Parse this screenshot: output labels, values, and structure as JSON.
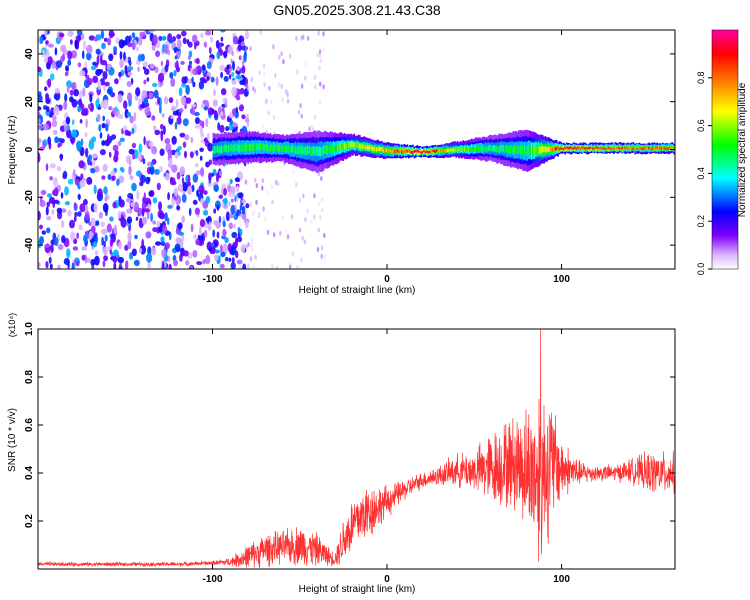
{
  "chart_data": [
    {
      "type": "heatmap",
      "title": "GN05.2025.308.21.43.C38",
      "xlabel": "Height of straight line (km)",
      "ylabel": "Frequency (Hz)",
      "xlim": [
        -200,
        165
      ],
      "ylim": [
        -50,
        50
      ],
      "xticks": [
        -100,
        0,
        100
      ],
      "yticks": [
        -40,
        -20,
        0,
        20,
        40
      ],
      "colorbar": {
        "label": "Normalized spectral amplitude",
        "range": [
          0,
          1
        ],
        "ticks": [
          0.0,
          0.2,
          0.4,
          0.6,
          0.8
        ],
        "colormap": [
          "#ffffff",
          "#d9b3ff",
          "#7f00ff",
          "#0000ff",
          "#00ffff",
          "#00ff00",
          "#ffff00",
          "#ff8000",
          "#ff0000",
          "#ff00a0"
        ]
      },
      "scatter_region": {
        "x": [
          -200,
          -90
        ],
        "amplitude": [
          0.05,
          0.35
        ]
      },
      "sparse_region": {
        "x": [
          -90,
          -35
        ],
        "amplitude": [
          0.02,
          0.12
        ]
      },
      "ridge": {
        "x": [
          -100,
          -80,
          -60,
          -40,
          -20,
          0,
          20,
          40,
          60,
          80,
          100,
          120,
          140,
          165
        ],
        "center_hz": [
          0,
          1,
          0.5,
          -1,
          2,
          -0.5,
          -1,
          0,
          0.5,
          -0.5,
          0.5,
          0.5,
          0.5,
          0.5
        ],
        "halfwidth_hz": [
          3,
          3,
          2.5,
          4,
          2,
          1.5,
          1,
          1.5,
          2.5,
          4,
          1,
          1,
          1,
          1
        ],
        "amplitude": [
          0.45,
          0.5,
          0.5,
          0.45,
          0.6,
          0.75,
          0.95,
          0.6,
          0.45,
          0.5,
          0.9,
          0.85,
          0.8,
          0.8
        ]
      }
    },
    {
      "type": "line",
      "xlabel": "Height of straight line (km)",
      "ylabel": "SNR (10 * v/v)",
      "scale_label": "(x10⁴)",
      "xlim": [
        -200,
        165
      ],
      "ylim": [
        0,
        1.0
      ],
      "xticks": [
        -100,
        0,
        100
      ],
      "yticks": [
        0.2,
        0.4,
        0.6,
        0.8,
        1.0
      ],
      "color": "#ff3030",
      "series": [
        {
          "name": "SNR",
          "x": [
            -200,
            -180,
            -160,
            -140,
            -120,
            -100,
            -90,
            -80,
            -70,
            -60,
            -50,
            -40,
            -30,
            -25,
            -20,
            -15,
            -10,
            -5,
            0,
            10,
            20,
            30,
            40,
            50,
            60,
            65,
            70,
            75,
            80,
            85,
            88,
            90,
            95,
            100,
            110,
            120,
            130,
            140,
            150,
            160,
            165
          ],
          "mean": [
            0.02,
            0.02,
            0.02,
            0.02,
            0.02,
            0.025,
            0.03,
            0.05,
            0.08,
            0.09,
            0.1,
            0.08,
            0.04,
            0.12,
            0.18,
            0.22,
            0.24,
            0.26,
            0.28,
            0.33,
            0.37,
            0.39,
            0.41,
            0.41,
            0.42,
            0.43,
            0.44,
            0.44,
            0.42,
            0.4,
            0.38,
            0.42,
            0.44,
            0.42,
            0.4,
            0.4,
            0.4,
            0.41,
            0.4,
            0.4,
            0.4
          ],
          "spread": [
            0.01,
            0.01,
            0.01,
            0.01,
            0.01,
            0.01,
            0.02,
            0.06,
            0.08,
            0.08,
            0.1,
            0.08,
            0.03,
            0.12,
            0.14,
            0.14,
            0.14,
            0.1,
            0.08,
            0.05,
            0.04,
            0.05,
            0.08,
            0.1,
            0.18,
            0.2,
            0.22,
            0.25,
            0.3,
            0.35,
            0.55,
            0.4,
            0.3,
            0.15,
            0.06,
            0.04,
            0.04,
            0.06,
            0.1,
            0.1,
            0.1
          ],
          "peak": {
            "x": 88,
            "y": 1.0
          }
        }
      ]
    }
  ]
}
